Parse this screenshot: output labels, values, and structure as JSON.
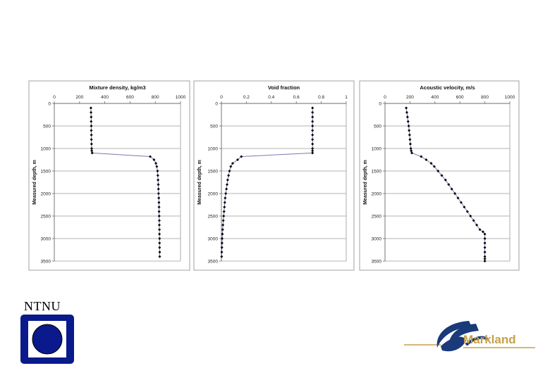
{
  "chart_data": [
    {
      "type": "line",
      "title": "Mixture density, kg/m3",
      "xlabel": "",
      "ylabel": "Measured depth, m",
      "xlim": [
        0,
        1000
      ],
      "ylim": [
        3500,
        0
      ],
      "x_ticks": [
        "0",
        "200",
        "400",
        "600",
        "800",
        "1000"
      ],
      "y_ticks": [
        "0",
        "500",
        "1000",
        "1500",
        "2000",
        "2500",
        "3000",
        "3500"
      ],
      "x_axis_position": "top",
      "grid": "horizontal",
      "series": [
        {
          "x": [
            290,
            291,
            292,
            292,
            293,
            293,
            294,
            294,
            295,
            296,
            297,
            300,
            760,
            790,
            805,
            812,
            818,
            820,
            822,
            824,
            825,
            826,
            828,
            829,
            830,
            830,
            831,
            832,
            832,
            833,
            833,
            834,
            834,
            834,
            835,
            835
          ],
          "y": [
            100,
            200,
            300,
            400,
            500,
            600,
            700,
            800,
            900,
            1000,
            1050,
            1100,
            1180,
            1250,
            1330,
            1400,
            1500,
            1600,
            1700,
            1800,
            1900,
            2000,
            2100,
            2200,
            2300,
            2400,
            2500,
            2600,
            2700,
            2800,
            2900,
            3000,
            3100,
            3200,
            3300,
            3400
          ]
        }
      ]
    },
    {
      "type": "line",
      "title": "Void fraction",
      "xlabel": "",
      "ylabel": "Measured depth, m",
      "xlim": [
        0,
        1
      ],
      "ylim": [
        3500,
        0
      ],
      "x_ticks": [
        "0",
        "0.2",
        "0.4",
        "0.6",
        "0.8",
        "1"
      ],
      "y_ticks": [
        "0",
        "500",
        "1000",
        "1500",
        "2000",
        "2500",
        "3000",
        "3500"
      ],
      "x_axis_position": "top",
      "grid": "horizontal",
      "series": [
        {
          "x": [
            0.73,
            0.73,
            0.73,
            0.73,
            0.73,
            0.73,
            0.73,
            0.73,
            0.73,
            0.73,
            0.73,
            0.73,
            0.16,
            0.13,
            0.09,
            0.075,
            0.065,
            0.057,
            0.05,
            0.045,
            0.04,
            0.035,
            0.03,
            0.027,
            0.024,
            0.021,
            0.018,
            0.015,
            0.012,
            0.01,
            0.008,
            0.006,
            0.005,
            0.004,
            0.003,
            0.002
          ],
          "y": [
            100,
            200,
            300,
            400,
            500,
            600,
            700,
            800,
            900,
            1000,
            1050,
            1100,
            1180,
            1250,
            1330,
            1400,
            1500,
            1600,
            1700,
            1800,
            1900,
            2000,
            2100,
            2200,
            2300,
            2400,
            2500,
            2600,
            2700,
            2800,
            2900,
            3000,
            3100,
            3200,
            3300,
            3400
          ]
        }
      ]
    },
    {
      "type": "line",
      "title": "Acoustic velocity, m/s",
      "xlabel": "",
      "ylabel": "Measured depth, m",
      "xlim": [
        0,
        1000
      ],
      "ylim": [
        3500,
        0
      ],
      "x_ticks": [
        "0",
        "200",
        "400",
        "600",
        "800",
        "1000"
      ],
      "y_ticks": [
        "0",
        "500",
        "1000",
        "1500",
        "2000",
        "2500",
        "3000",
        "3500"
      ],
      "x_axis_position": "top",
      "grid": "horizontal",
      "series": [
        {
          "x": [
            170,
            175,
            180,
            185,
            190,
            193,
            197,
            200,
            203,
            207,
            210,
            215,
            290,
            330,
            370,
            395,
            425,
            455,
            485,
            510,
            535,
            560,
            585,
            610,
            635,
            660,
            685,
            710,
            735,
            760,
            785,
            800,
            800,
            800,
            800,
            800,
            800,
            800,
            800
          ],
          "y": [
            100,
            200,
            300,
            400,
            500,
            600,
            700,
            800,
            900,
            1000,
            1050,
            1100,
            1180,
            1250,
            1330,
            1400,
            1500,
            1600,
            1700,
            1800,
            1900,
            2000,
            2100,
            2200,
            2300,
            2400,
            2500,
            2600,
            2700,
            2800,
            2850,
            2900,
            3000,
            3100,
            3200,
            3300,
            3400,
            3450,
            3500
          ]
        }
      ]
    }
  ],
  "ntnu": {
    "label": "NTNU"
  },
  "markland": {
    "label": "Markland"
  },
  "colors": {
    "line": "#7b7bb6",
    "marker": "#000000",
    "grid": "#9a9a9a",
    "frame": "#a0a0a0",
    "ntnu_blue": "#0a1a8c",
    "markland_blue": "#1a3a7a",
    "markland_gold": "#c7a14a"
  }
}
